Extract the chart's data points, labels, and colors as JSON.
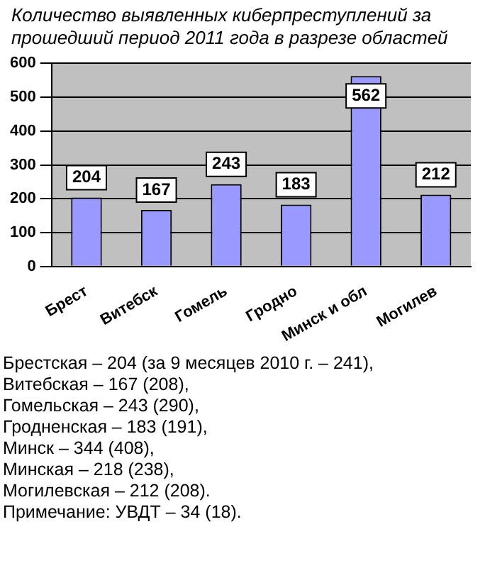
{
  "chart_data": {
    "type": "bar",
    "title": "Количество выявленных киберпреступлений за прошедший период 2011 года в разрезе областей",
    "categories": [
      "Брест",
      "Витебск",
      "Гомель",
      "Гродно",
      "Минск и обл",
      "Могилев"
    ],
    "values": [
      204,
      167,
      243,
      183,
      562,
      212
    ],
    "color": "#9999ff",
    "ylim": [
      0,
      600
    ],
    "yticks": [
      0,
      100,
      200,
      300,
      400,
      500,
      600
    ],
    "grid": "y",
    "data_labels": true,
    "annotations": [
      "Брестская – 204 (за 9 месяцев 2010 г. – 241),",
      "Витебская – 167 (208),",
      "Гомельская – 243 (290),",
      "Гродненская – 183 (191),",
      "Минск – 344 (408),",
      "Минская – 218 (238),",
      "Могилевская – 212 (208).",
      "Примечание: УВДТ – 34 (18)."
    ]
  }
}
